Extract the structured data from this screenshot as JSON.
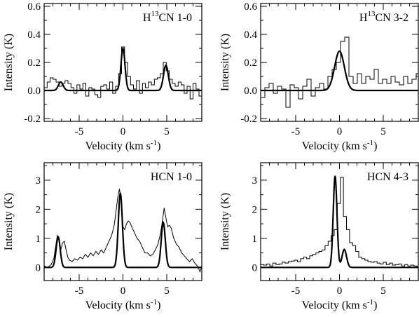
{
  "chart_data": [
    {
      "type": "line",
      "title": "H13CN 1-0",
      "title_parts": {
        "pre": "H",
        "sup": "13",
        "post": "CN 1-0"
      },
      "xlabel": "Velocity (km s-1)",
      "xlabel_parts": {
        "main": "Velocity (km s",
        "sup": "-1",
        "post": ")"
      },
      "ylabel": "Intensity (K)",
      "xlim": [
        -9,
        9
      ],
      "ylim": [
        -0.22,
        0.62
      ],
      "xticks": [
        -5,
        0,
        5
      ],
      "xticklabels": [
        "-5",
        "0",
        "5"
      ],
      "yticks": [
        -0.2,
        0.0,
        0.2,
        0.4,
        0.6
      ],
      "yticklabels": [
        "-0.2",
        "0.0",
        "0.2",
        "0.4",
        "0.6"
      ],
      "series": [
        {
          "style": "histogram",
          "step": 0.34,
          "y": [
            0.02,
            0.06,
            0.09,
            0.08,
            0.06,
            0.03,
            0.05,
            0.07,
            0.05,
            0.02,
            -0.02,
            0.04,
            0.01,
            0.05,
            -0.04,
            0.02,
            0.01,
            -0.03,
            -0.05,
            0.03,
            0.04,
            0.01,
            0.06,
            -0.02,
            0.03,
            0.12,
            0.31,
            0.2,
            0.1,
            0.04,
            0.01,
            0.07,
            -0.02,
            0.05,
            0.02,
            0.06,
            0.04,
            0.08,
            0.09,
            0.12,
            0.2,
            0.14,
            0.08,
            0.05,
            0.03,
            0.06,
            0.04,
            -0.02,
            0.03,
            -0.06,
            0.05,
            0.01,
            -0.04
          ]
        },
        {
          "style": "model",
          "components": [
            {
              "center": 0.0,
              "amp": 0.3,
              "fwhm": 0.55
            },
            {
              "center": 4.9,
              "amp": 0.18,
              "fwhm": 0.65
            },
            {
              "center": -7.1,
              "amp": 0.06,
              "fwhm": 0.65
            }
          ]
        }
      ]
    },
    {
      "type": "line",
      "title": "H13CN 3-2",
      "title_parts": {
        "pre": "H",
        "sup": "13",
        "post": "CN 3-2"
      },
      "xlabel": "Velocity (km s-1)",
      "xlabel_parts": {
        "main": "Velocity (km s",
        "sup": "-1",
        "post": ")"
      },
      "ylabel": "Intensity (K)",
      "xlim": [
        -9,
        9
      ],
      "ylim": [
        -0.22,
        0.62
      ],
      "xticks": [
        -5,
        0,
        5
      ],
      "xticklabels": [
        "-5",
        "0",
        "5"
      ],
      "yticks": [
        -0.2,
        0.0,
        0.2,
        0.4,
        0.6
      ],
      "yticklabels": [
        "-0.2",
        "0.0",
        "0.2",
        "0.4",
        "0.6"
      ],
      "series": [
        {
          "style": "histogram",
          "step": 0.48,
          "y": [
            -0.05,
            0.02,
            0.05,
            -0.02,
            0.03,
            0.01,
            -0.12,
            0.04,
            0.02,
            -0.06,
            0.03,
            0.08,
            -0.04,
            0.02,
            0.05,
            0.01,
            0.1,
            0.15,
            0.2,
            0.35,
            0.38,
            0.1,
            0.05,
            0.12,
            0.05,
            0.1,
            0.08,
            0.15,
            0.05,
            0.08,
            0.05,
            0.1,
            0.06,
            0.04,
            0.1,
            0.05,
            0.08,
            0.12
          ]
        },
        {
          "style": "model",
          "components": [
            {
              "center": 0.0,
              "amp": 0.28,
              "fwhm": 1.3
            }
          ]
        }
      ]
    },
    {
      "type": "line",
      "title": "HCN 1-0",
      "xlabel": "Velocity (km s-1)",
      "xlabel_parts": {
        "main": "Velocity (km s",
        "sup": "-1",
        "post": ")"
      },
      "ylabel": "Intensity (K)",
      "xlim": [
        -9,
        9
      ],
      "ylim": [
        -0.45,
        3.6
      ],
      "xticks": [
        -5,
        0,
        5
      ],
      "xticklabels": [
        "-5",
        "0",
        "5"
      ],
      "yticks": [
        0,
        1,
        2,
        3
      ],
      "yticklabels": [
        "0",
        "1",
        "2",
        "3"
      ],
      "series": [
        {
          "style": "line",
          "x": [
            -9.0,
            -8.6,
            -8.2,
            -7.9,
            -7.7,
            -7.5,
            -7.3,
            -7.1,
            -6.9,
            -6.7,
            -6.5,
            -6.3,
            -6.1,
            -5.8,
            -5.5,
            -5.2,
            -4.9,
            -4.6,
            -4.3,
            -4.0,
            -3.7,
            -3.4,
            -3.1,
            -2.8,
            -2.5,
            -2.2,
            -1.9,
            -1.6,
            -1.3,
            -1.0,
            -0.8,
            -0.6,
            -0.4,
            -0.2,
            0.0,
            0.2,
            0.4,
            0.6,
            0.8,
            1.0,
            1.3,
            1.6,
            1.9,
            2.2,
            2.5,
            2.8,
            3.1,
            3.4,
            3.7,
            4.0,
            4.3,
            4.5,
            4.7,
            4.9,
            5.1,
            5.3,
            5.5,
            5.8,
            6.1,
            6.4,
            6.7,
            7.0,
            7.3,
            7.6,
            7.9,
            8.2,
            8.5,
            8.8,
            9.0
          ],
          "y": [
            0.05,
            0.0,
            0.1,
            0.3,
            0.7,
            1.1,
            1.0,
            0.6,
            0.85,
            0.9,
            0.6,
            0.35,
            0.25,
            0.2,
            0.3,
            0.25,
            0.35,
            0.3,
            0.45,
            0.35,
            0.5,
            0.4,
            0.55,
            0.45,
            0.6,
            0.5,
            0.7,
            0.9,
            1.1,
            1.45,
            1.9,
            2.4,
            2.7,
            2.2,
            1.4,
            1.3,
            1.5,
            1.6,
            1.55,
            1.4,
            1.2,
            1.0,
            0.9,
            0.7,
            0.5,
            0.5,
            0.4,
            0.45,
            0.6,
            0.8,
            1.2,
            1.6,
            2.05,
            1.7,
            1.4,
            1.45,
            1.35,
            1.0,
            0.8,
            0.7,
            0.5,
            0.4,
            0.3,
            0.2,
            0.3,
            0.15,
            0.05,
            -0.15,
            0.05
          ]
        },
        {
          "style": "model",
          "components": [
            {
              "center": -7.4,
              "amp": 1.05,
              "fwhm": 0.55
            },
            {
              "center": -0.3,
              "amp": 2.55,
              "fwhm": 0.55
            },
            {
              "center": 4.6,
              "amp": 1.55,
              "fwhm": 0.55
            }
          ]
        }
      ]
    },
    {
      "type": "line",
      "title": "HCN 4-3",
      "xlabel": "Velocity (km s-1)",
      "xlabel_parts": {
        "main": "Velocity (km s",
        "sup": "-1",
        "post": ")"
      },
      "ylabel": "Intensity (K)",
      "xlim": [
        -9,
        9
      ],
      "ylim": [
        -0.45,
        3.6
      ],
      "xticks": [
        -5,
        0,
        5
      ],
      "xticklabels": [
        "-5",
        "0",
        "5"
      ],
      "yticks": [
        0,
        1,
        2,
        3
      ],
      "yticklabels": [
        "0",
        "1",
        "2",
        "3"
      ],
      "series": [
        {
          "style": "histogram",
          "step": 0.35,
          "y": [
            0.1,
            0.08,
            0.12,
            0.05,
            0.15,
            0.1,
            0.12,
            0.18,
            0.15,
            0.2,
            0.22,
            0.25,
            0.2,
            0.3,
            0.35,
            0.3,
            0.4,
            0.45,
            0.5,
            0.55,
            0.6,
            0.75,
            0.9,
            1.1,
            1.3,
            2.2,
            3.1,
            1.75,
            1.3,
            0.85,
            0.75,
            0.55,
            0.35,
            0.3,
            0.25,
            0.2,
            0.18,
            0.2,
            0.15,
            0.12,
            0.18,
            0.1,
            0.15,
            0.08,
            0.1,
            0.12,
            0.05,
            0.1,
            0.05,
            0.08,
            0.05,
            0.03
          ]
        },
        {
          "style": "model",
          "components": [
            {
              "center": -0.5,
              "amp": 3.15,
              "fwhm": 0.5
            },
            {
              "center": 0.55,
              "amp": 0.62,
              "fwhm": 0.6
            }
          ]
        }
      ]
    }
  ]
}
